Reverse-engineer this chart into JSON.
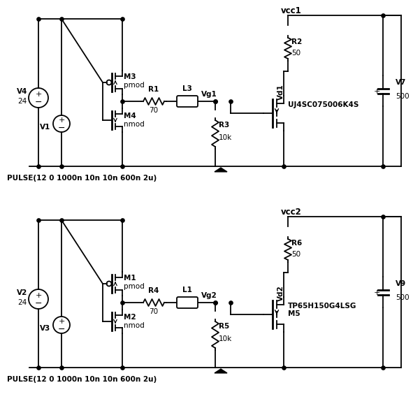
{
  "bg": "#ffffff",
  "lc": "#000000",
  "circuit1": {
    "vcc_label": "vcc1",
    "r_snub_label": "R2",
    "r_snub_val": "50",
    "vd_label": "Vd1",
    "vg_label": "Vg1",
    "fet_label": "UJ4SC075006K4S",
    "r_gate_label": "R1",
    "r_gate_val": "70",
    "l_label": "L3",
    "r_pull_label": "R3",
    "r_pull_val": "10k",
    "cap_label": "V7",
    "cap_val": "500",
    "pmos_label": "M3",
    "pmos_type": "pmod",
    "nmos_label": "M4",
    "nmos_type": "nmod",
    "vs_label": "V4",
    "vs_val": "24",
    "vsig_label": "V1",
    "pulse_label": "PULSE(12 0 1000n 10n 10n 600n 2u)"
  },
  "circuit2": {
    "vcc_label": "vcc2",
    "r_snub_label": "R6",
    "r_snub_val": "50",
    "vd_label": "Vd2",
    "vg_label": "Vg2",
    "fet_label": "TP65H150G4LSG",
    "fet_sublabel": "M5",
    "r_gate_label": "R4",
    "r_gate_val": "70",
    "l_label": "L1",
    "r_pull_label": "R5",
    "r_pull_val": "10k",
    "cap_label": "V9",
    "cap_val": "500",
    "pmos_label": "M1",
    "pmos_type": "pmod",
    "nmos_label": "M2",
    "nmos_type": "nmod",
    "vs_label": "V2",
    "vs_val": "24",
    "vsig_label": "V3",
    "pulse_label": "PULSE(12 0 1000n 10n 10n 600n 2u)"
  }
}
